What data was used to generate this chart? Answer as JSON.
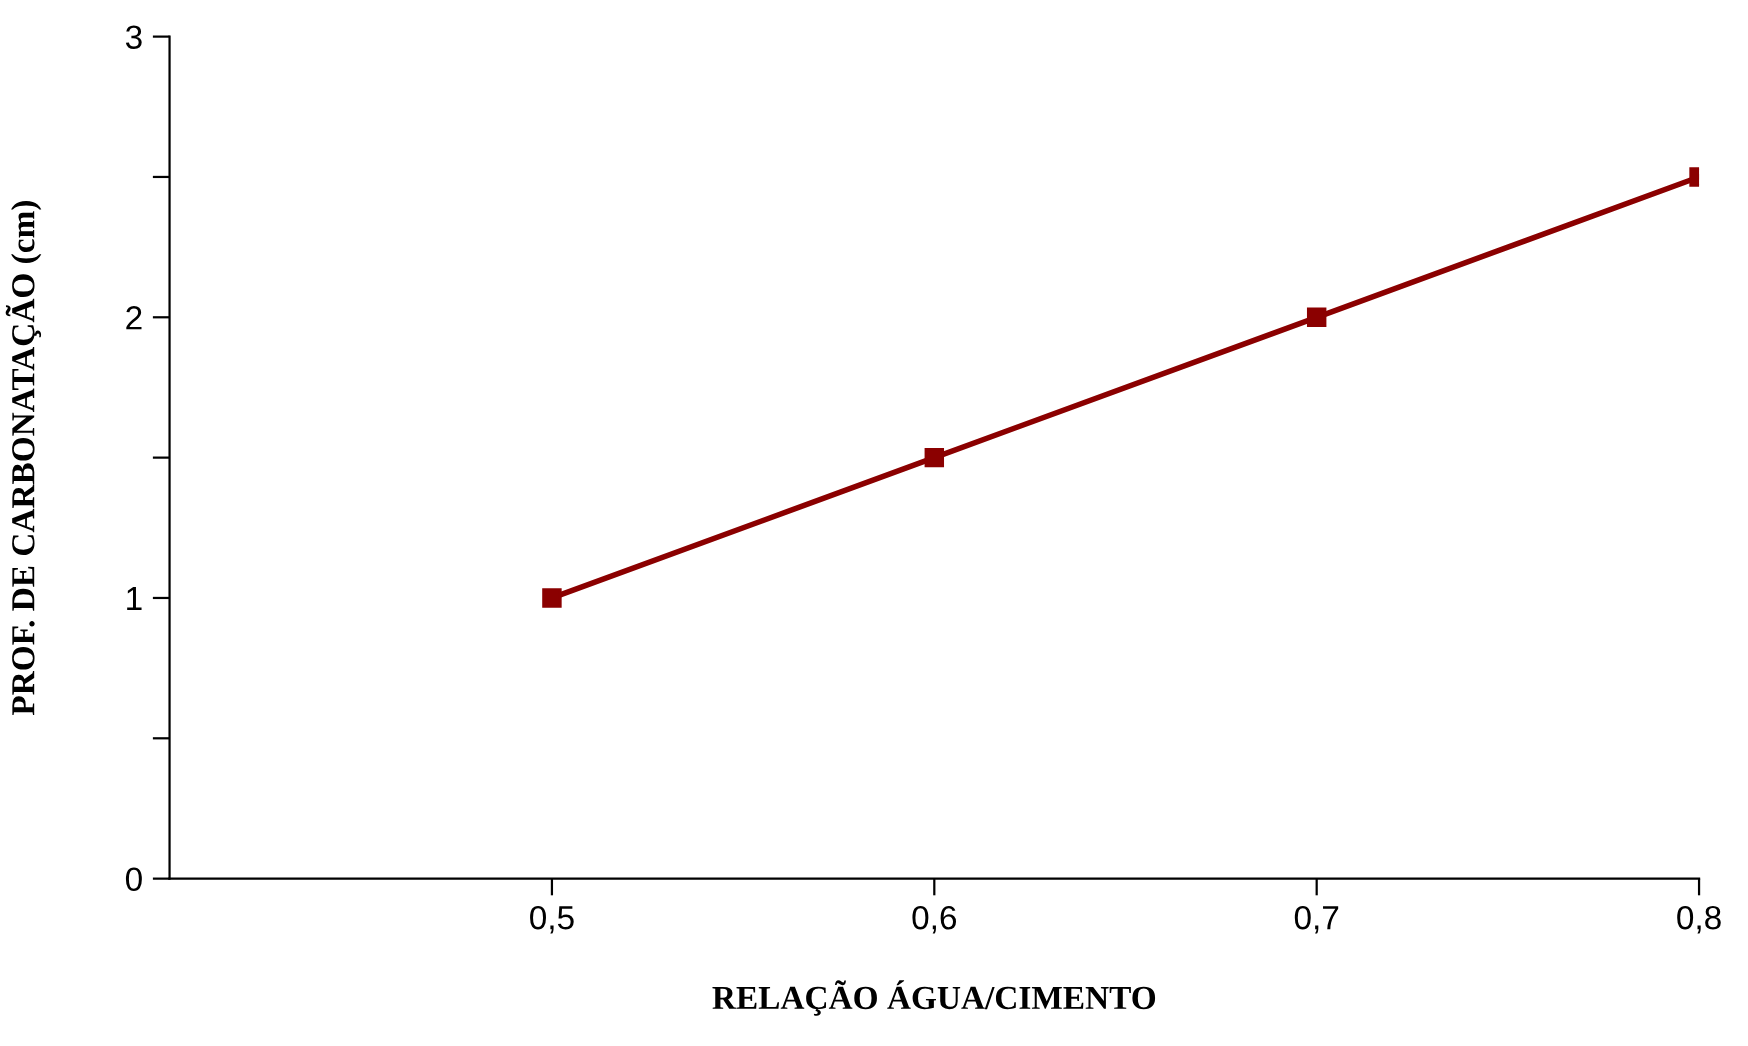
{
  "chart_data": {
    "type": "line",
    "xlabel": "RELAÇÃO ÁGUA/CIMENTO",
    "ylabel": "PROF. DE CARBONATAÇÃO (cm)",
    "x": [
      0.5,
      0.6,
      0.7,
      0.8
    ],
    "series": [
      {
        "color": "#8b0000",
        "values": [
          1,
          1.5,
          2,
          2.5
        ]
      }
    ],
    "xlim": [
      0.4,
      0.8
    ],
    "ylim": [
      0,
      3
    ],
    "xticks": [
      {
        "value": 0.5,
        "label": "0,5"
      },
      {
        "value": 0.6,
        "label": "0,6"
      },
      {
        "value": 0.7,
        "label": "0,7"
      },
      {
        "value": 0.8,
        "label": "0,8"
      }
    ],
    "yticks": [
      0,
      {
        "value": 0.5,
        "label": null
      },
      1,
      {
        "value": 1.5,
        "label": null
      },
      2,
      {
        "value": 2.5,
        "label": null
      },
      3
    ],
    "marker": "square",
    "line_style": "solid",
    "grid": false,
    "legend": false
  }
}
